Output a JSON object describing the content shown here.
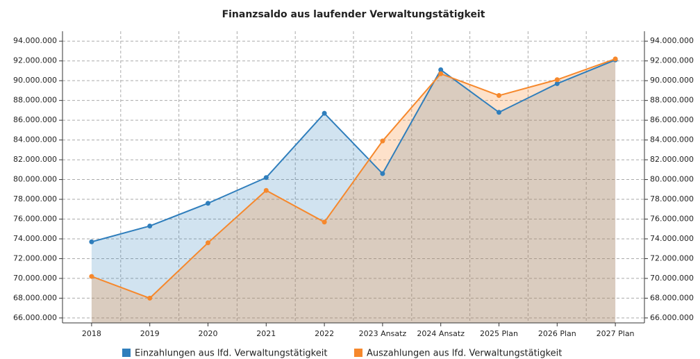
{
  "chart_data": {
    "type": "line",
    "title": "Finanzsaldo aus laufender Verwaltungstätigkeit",
    "categories": [
      "2018",
      "2019",
      "2020",
      "2021",
      "2022",
      "2023 Ansatz",
      "2024 Ansatz",
      "2025 Plan",
      "2026 Plan",
      "2027 Plan"
    ],
    "series": [
      {
        "name": "Einzahlungen aus lfd. Verwaltungstätigkeit",
        "color": "#2f7ebc",
        "values": [
          73700000,
          75300000,
          77600000,
          80200000,
          86700000,
          80600000,
          91100000,
          86800000,
          89700000,
          92100000
        ]
      },
      {
        "name": "Auszahlungen aus lfd. Verwaltungstätigkeit",
        "color": "#f6882c",
        "values": [
          70200000,
          68000000,
          73600000,
          78900000,
          75700000,
          83900000,
          90700000,
          88500000,
          90100000,
          92200000
        ]
      }
    ],
    "ylim": [
      65500000,
      95000000
    ],
    "yticks": [
      {
        "value": 66000000,
        "label": "66.000.000"
      },
      {
        "value": 68000000,
        "label": "68.000.000"
      },
      {
        "value": 70000000,
        "label": "70.000.000"
      },
      {
        "value": 72000000,
        "label": "72.000.000"
      },
      {
        "value": 74000000,
        "label": "74.000.000"
      },
      {
        "value": 76000000,
        "label": "76.000.000"
      },
      {
        "value": 78000000,
        "label": "78.000.000"
      },
      {
        "value": 80000000,
        "label": "80.000.000"
      },
      {
        "value": 82000000,
        "label": "82.000.000"
      },
      {
        "value": 84000000,
        "label": "84.000.000"
      },
      {
        "value": 86000000,
        "label": "86.000.000"
      },
      {
        "value": 88000000,
        "label": "88.000.000"
      },
      {
        "value": 90000000,
        "label": "90.000.000"
      },
      {
        "value": 92000000,
        "label": "92.000.000"
      },
      {
        "value": 94000000,
        "label": "94.000.000"
      }
    ],
    "y2lim": [
      65500000,
      95000000
    ],
    "y2ticks": [
      {
        "value": 66000000,
        "label": "66.000.000"
      },
      {
        "value": 68000000,
        "label": "68.000.000"
      },
      {
        "value": 70000000,
        "label": "70.000.000"
      },
      {
        "value": 72000000,
        "label": "72.000.000"
      },
      {
        "value": 74000000,
        "label": "74.000.000"
      },
      {
        "value": 76000000,
        "label": "76.000.000"
      },
      {
        "value": 78000000,
        "label": "78.000.000"
      },
      {
        "value": 80000000,
        "label": "80.000.000"
      },
      {
        "value": 82000000,
        "label": "82.000.000"
      },
      {
        "value": 84000000,
        "label": "84.000.000"
      },
      {
        "value": 86000000,
        "label": "86.000.000"
      },
      {
        "value": 88000000,
        "label": "88.000.000"
      },
      {
        "value": 90000000,
        "label": "90.000.000"
      },
      {
        "value": 92000000,
        "label": "92.000.000"
      },
      {
        "value": 94000000,
        "label": "94.000.000"
      }
    ],
    "grid": true,
    "legend": "bottom"
  }
}
